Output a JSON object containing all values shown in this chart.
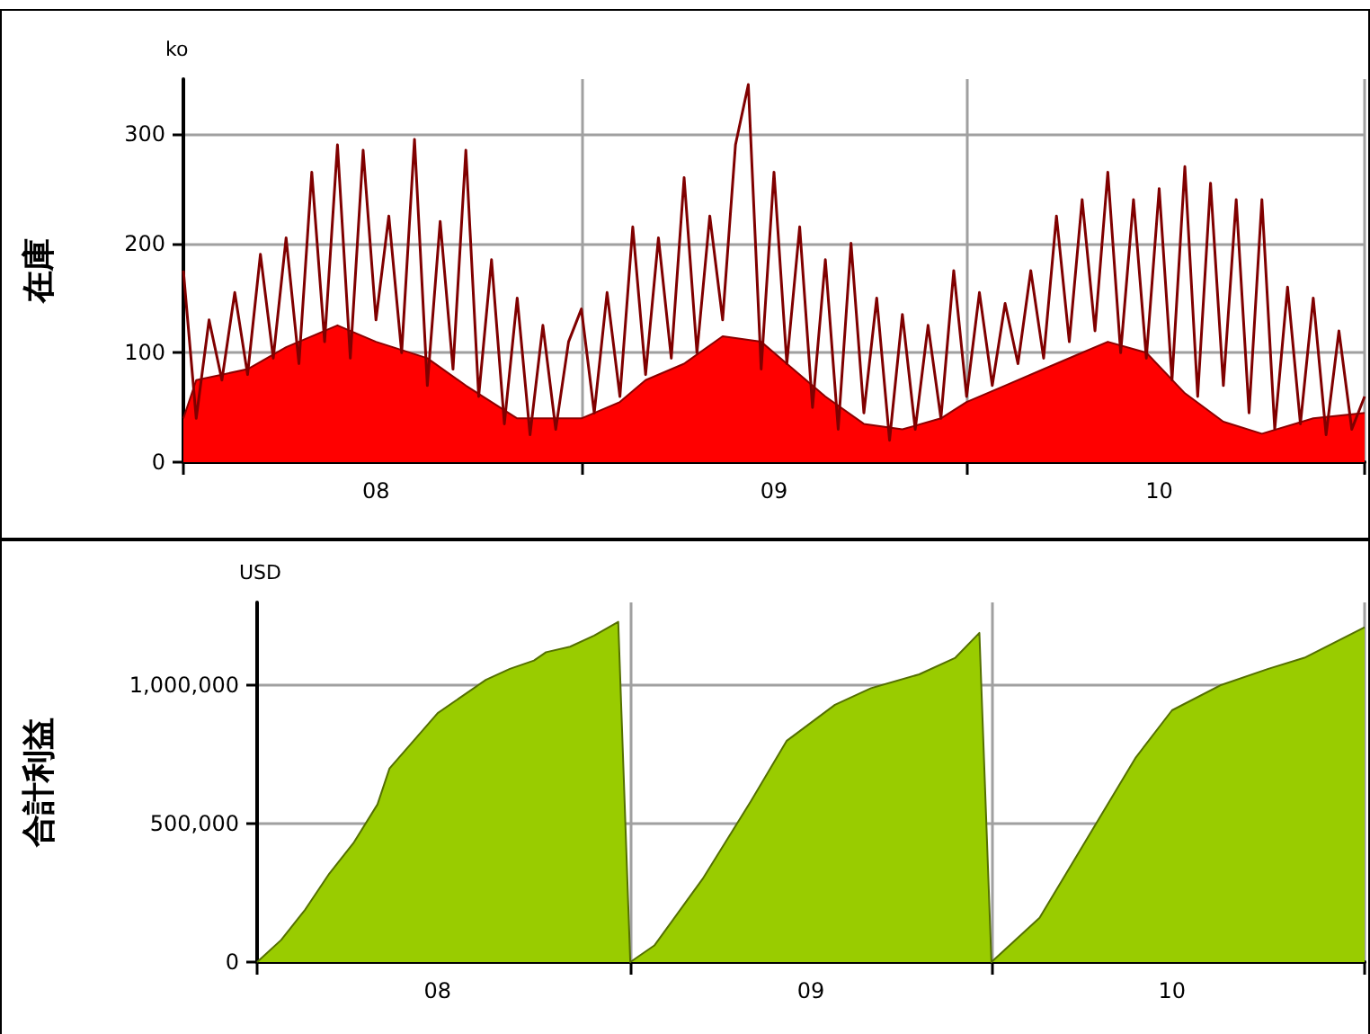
{
  "chart_data": [
    {
      "type": "area",
      "ylabel": "在庫",
      "annotations": [
        "ko"
      ],
      "xlim": [
        "--08-01",
        "--11-01"
      ],
      "xticks": [
        {
          "value": "--08-01",
          "label": null
        },
        {
          "value": "--08-16",
          "label": "08"
        },
        {
          "value": "--09-01",
          "label": null
        },
        {
          "value": "--09-16",
          "label": "09"
        },
        {
          "value": "--10-01",
          "label": null
        },
        {
          "value": "--10-16",
          "label": "10"
        },
        {
          "value": "--11-01",
          "label": null
        }
      ],
      "ylim": [
        0,
        350
      ],
      "yticks": [
        0,
        100,
        200,
        300
      ],
      "grid": true,
      "marker": "none",
      "line_style": "solid",
      "series": [
        {
          "type": "area",
          "color": "#ff0000",
          "x": [
            "--08-01",
            "--08-02",
            "--08-06",
            "--08-09",
            "--08-13",
            "--08-16",
            "--08-20",
            "--08-23",
            "--08-27",
            "--09-01",
            "--09-04",
            "--09-06",
            "--09-09",
            "--09-12",
            "--09-15",
            "--09-17",
            "--09-20",
            "--09-23",
            "--09-26",
            "--09-29",
            "--10-01",
            "--10-04",
            "--10-07",
            "--10-10",
            "--10-12",
            "--10-15",
            "--10-18",
            "--10-21",
            "--10-24",
            "--10-28",
            "--11-01"
          ],
          "values": [
            40,
            75,
            85,
            105,
            125,
            110,
            95,
            70,
            40,
            40,
            55,
            75,
            90,
            115,
            110,
            90,
            60,
            35,
            30,
            40,
            55,
            70,
            85,
            100,
            110,
            100,
            63,
            37,
            26,
            40,
            45
          ]
        },
        {
          "type": "line",
          "color": "#800000",
          "x": [
            "--08-01",
            "--08-02",
            "--08-03",
            "--08-04",
            "--08-05",
            "--08-06",
            "--08-07",
            "--08-08",
            "--08-09",
            "--08-10",
            "--08-11",
            "--08-12",
            "--08-13",
            "--08-14",
            "--08-15",
            "--08-16",
            "--08-17",
            "--08-18",
            "--08-19",
            "--08-20",
            "--08-21",
            "--08-22",
            "--08-23",
            "--08-24",
            "--08-25",
            "--08-26",
            "--08-27",
            "--08-28",
            "--08-29",
            "--08-30",
            "--08-31",
            "--09-01",
            "--09-02",
            "--09-03",
            "--09-04",
            "--09-05",
            "--09-06",
            "--09-07",
            "--09-08",
            "--09-09",
            "--09-10",
            "--09-11",
            "--09-12",
            "--09-13",
            "--09-14",
            "--09-15",
            "--09-16",
            "--09-17",
            "--09-18",
            "--09-19",
            "--09-20",
            "--09-21",
            "--09-22",
            "--09-23",
            "--09-24",
            "--09-25",
            "--09-26",
            "--09-27",
            "--09-28",
            "--09-29",
            "--09-30",
            "--10-01",
            "--10-02",
            "--10-03",
            "--10-04",
            "--10-05",
            "--10-06",
            "--10-07",
            "--10-08",
            "--10-09",
            "--10-10",
            "--10-11",
            "--10-12",
            "--10-13",
            "--10-14",
            "--10-15",
            "--10-16",
            "--10-17",
            "--10-18",
            "--10-19",
            "--10-20",
            "--10-21",
            "--10-22",
            "--10-23",
            "--10-24",
            "--10-25",
            "--10-26",
            "--10-27",
            "--10-28",
            "--10-29",
            "--10-30",
            "--10-31",
            "--11-01"
          ],
          "values": [
            175,
            40,
            130,
            75,
            155,
            80,
            190,
            95,
            205,
            90,
            265,
            110,
            290,
            95,
            285,
            130,
            225,
            100,
            295,
            70,
            220,
            85,
            285,
            60,
            185,
            35,
            150,
            25,
            125,
            30,
            110,
            140,
            45,
            155,
            60,
            215,
            80,
            205,
            95,
            260,
            100,
            225,
            130,
            290,
            345,
            85,
            265,
            90,
            215,
            50,
            185,
            30,
            200,
            45,
            150,
            20,
            135,
            30,
            125,
            40,
            175,
            60,
            155,
            70,
            145,
            90,
            175,
            95,
            225,
            110,
            240,
            120,
            265,
            100,
            240,
            95,
            250,
            75,
            270,
            60,
            255,
            70,
            240,
            45,
            240,
            30,
            160,
            35,
            150,
            25,
            120,
            30,
            60
          ]
        }
      ]
    },
    {
      "type": "area",
      "ylabel": "合計利益",
      "annotations": [
        "USD"
      ],
      "xlim": [
        "--08-01",
        "--11-01"
      ],
      "xticks": [
        {
          "value": "--08-01",
          "label": null
        },
        {
          "value": "--08-16",
          "label": "08"
        },
        {
          "value": "--09-01",
          "label": null
        },
        {
          "value": "--09-16",
          "label": "09"
        },
        {
          "value": "--10-01",
          "label": null
        },
        {
          "value": "--10-16",
          "label": "10"
        },
        {
          "value": "--11-01",
          "label": null
        }
      ],
      "ylim": [
        0,
        1300000
      ],
      "yticks": [
        0,
        {
          "value": 500000,
          "label": "500,000"
        },
        {
          "value": 1000000,
          "label": "1,000,000"
        }
      ],
      "grid": true,
      "marker": "none",
      "line_style": "solid",
      "series": [
        {
          "type": "area",
          "color": "#99cc00",
          "x": [
            "--08-01",
            "--08-03",
            "--08-05",
            "--08-07",
            "--08-09",
            "--08-11",
            "--08-12",
            "--08-14",
            "--08-16",
            "--08-18",
            "--08-20",
            "--08-22",
            "--08-24",
            "--08-25",
            "--08-27",
            "--08-29",
            "--08-31",
            "--09-01",
            "--09-03",
            "--09-07",
            "--09-11",
            "--09-14",
            "--09-18",
            "--09-21",
            "--09-25",
            "--09-28",
            "--09-30",
            "--10-01",
            "--10-05",
            "--10-09",
            "--10-13",
            "--10-16",
            "--10-20",
            "--10-24",
            "--10-27",
            "--11-01"
          ],
          "values": [
            0,
            80000,
            190000,
            320000,
            430000,
            570000,
            700000,
            800000,
            900000,
            960000,
            1020000,
            1060000,
            1090000,
            1120000,
            1140000,
            1180000,
            1230000,
            0,
            60000,
            300000,
            580000,
            800000,
            930000,
            990000,
            1040000,
            1100000,
            1190000,
            0,
            160000,
            450000,
            740000,
            910000,
            1000000,
            1060000,
            1100000,
            1210000
          ]
        }
      ]
    }
  ]
}
